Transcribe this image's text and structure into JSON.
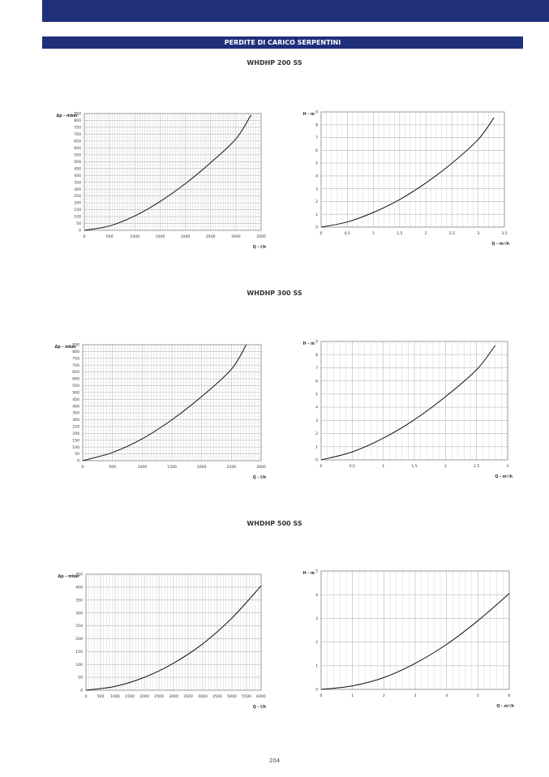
{
  "header": {
    "section_title": "PERDITE DI CARICO SERPENTINI"
  },
  "models": [
    {
      "title": "WHDHP 200 SS"
    },
    {
      "title": "WHDHP 300 SS"
    },
    {
      "title": "WHDHP 500 SS"
    }
  ],
  "page_number": "204",
  "colors": {
    "brand_bar": "#1f2f7a",
    "grid": "#b8b8b8",
    "curve": "#111111"
  },
  "chart_data": [
    {
      "type": "line",
      "title": "",
      "ylabel": "Δp - mbar",
      "xlabel": "Q - l/h",
      "xlim": [
        0,
        3500
      ],
      "ylim": [
        0,
        850
      ],
      "xticks": [
        0,
        500,
        1000,
        1500,
        2000,
        2500,
        3000,
        3500
      ],
      "xtick_labels": [
        "0",
        "500",
        "1000",
        "1500",
        "2000",
        "2500",
        "3000",
        "3500"
      ],
      "yticks": [
        0,
        50,
        100,
        150,
        200,
        250,
        300,
        350,
        400,
        450,
        500,
        550,
        600,
        650,
        700,
        750,
        800,
        850
      ],
      "ytick_labels": [
        "0",
        "50",
        "100",
        "150",
        "200",
        "250",
        "300",
        "350",
        "400",
        "450",
        "500",
        "550",
        "600",
        "650",
        "700",
        "750",
        "800",
        "850"
      ],
      "minor_x": 10,
      "grid": true,
      "series": [
        {
          "x": [
            0,
            500,
            1000,
            1500,
            2000,
            2500,
            3000,
            3300
          ],
          "y": [
            0,
            32,
            105,
            210,
            340,
            492,
            665,
            840
          ]
        }
      ]
    },
    {
      "type": "line",
      "title": "",
      "ylabel": "H - m",
      "xlabel": "Q - m³/h",
      "xlim": [
        0,
        3.5
      ],
      "ylim": [
        0,
        9
      ],
      "xticks": [
        0,
        0.5,
        1,
        1.5,
        2,
        2.5,
        3,
        3.5
      ],
      "xtick_labels": [
        "0",
        "0,5",
        "1",
        "1,5",
        "2",
        "2,5",
        "3",
        "3,5"
      ],
      "yticks": [
        0,
        1,
        2,
        3,
        4,
        5,
        6,
        7,
        8,
        9
      ],
      "ytick_labels": [
        "0",
        "1",
        "2",
        "3",
        "4",
        "5",
        "6",
        "7",
        "8",
        "9"
      ],
      "minor_x": 5,
      "grid": true,
      "series": [
        {
          "x": [
            0,
            0.5,
            1,
            1.5,
            2,
            2.5,
            3,
            3.3
          ],
          "y": [
            0,
            0.4,
            1.15,
            2.15,
            3.45,
            5.0,
            6.85,
            8.55
          ]
        }
      ]
    },
    {
      "type": "line",
      "title": "",
      "ylabel": "Δp - mbar",
      "xlabel": "Q - l/h",
      "xlim": [
        0,
        3000
      ],
      "ylim": [
        0,
        850
      ],
      "xticks": [
        0,
        500,
        1000,
        1500,
        2000,
        2500,
        3000
      ],
      "xtick_labels": [
        "0",
        "500",
        "1000",
        "1500",
        "2000",
        "2500",
        "3000"
      ],
      "yticks": [
        0,
        50,
        100,
        150,
        200,
        250,
        300,
        350,
        400,
        450,
        500,
        550,
        600,
        650,
        700,
        750,
        800,
        850
      ],
      "ytick_labels": [
        "0",
        "50",
        "100",
        "150",
        "200",
        "250",
        "300",
        "350",
        "400",
        "450",
        "500",
        "550",
        "600",
        "650",
        "700",
        "750",
        "800",
        "850"
      ],
      "minor_x": 10,
      "grid": true,
      "series": [
        {
          "x": [
            0,
            500,
            1000,
            1500,
            2000,
            2500,
            2750
          ],
          "y": [
            0,
            60,
            160,
            300,
            470,
            670,
            850
          ]
        }
      ]
    },
    {
      "type": "line",
      "title": "",
      "ylabel": "H - m",
      "xlabel": "Q - m³/h",
      "xlim": [
        0,
        3
      ],
      "ylim": [
        0,
        9
      ],
      "xticks": [
        0,
        0.5,
        1,
        1.5,
        2,
        2.5,
        3
      ],
      "xtick_labels": [
        "0",
        "0,5",
        "1",
        "1,5",
        "2",
        "2,5",
        "3"
      ],
      "yticks": [
        0,
        1,
        2,
        3,
        4,
        5,
        6,
        7,
        8,
        9
      ],
      "ytick_labels": [
        "0",
        "1",
        "2",
        "3",
        "4",
        "5",
        "6",
        "7",
        "8",
        "9"
      ],
      "minor_x": 5,
      "grid": true,
      "series": [
        {
          "x": [
            0,
            0.5,
            1,
            1.5,
            2,
            2.5,
            2.8
          ],
          "y": [
            0,
            0.6,
            1.65,
            3.05,
            4.8,
            6.85,
            8.7
          ]
        }
      ]
    },
    {
      "type": "line",
      "title": "",
      "ylabel": "Δp - mbar",
      "xlabel": "Q - l/h",
      "xlim": [
        0,
        6000
      ],
      "ylim": [
        0,
        450
      ],
      "xticks": [
        0,
        500,
        1000,
        1500,
        2000,
        2500,
        3000,
        3500,
        4000,
        4500,
        5000,
        5500,
        6000
      ],
      "xtick_labels": [
        "0",
        "500",
        "1000",
        "1500",
        "2000",
        "2500",
        "3000",
        "3500",
        "4000",
        "4500",
        "5000",
        "5500",
        "6000"
      ],
      "yticks": [
        0,
        50,
        100,
        150,
        200,
        250,
        300,
        350,
        400,
        450
      ],
      "ytick_labels": [
        "0",
        "50",
        "100",
        "150",
        "200",
        "250",
        "300",
        "350",
        "400",
        "450"
      ],
      "minor_x": 5,
      "grid": true,
      "series": [
        {
          "x": [
            0,
            1000,
            2000,
            3000,
            4000,
            5000,
            6000
          ],
          "y": [
            0,
            15,
            50,
            105,
            180,
            280,
            405
          ]
        }
      ]
    },
    {
      "type": "line",
      "title": "",
      "ylabel": "H - m",
      "xlabel": "Q - m³/h",
      "xlim": [
        0,
        6
      ],
      "ylim": [
        0,
        5
      ],
      "xticks": [
        0,
        1,
        2,
        3,
        4,
        5,
        6
      ],
      "xtick_labels": [
        "0",
        "1",
        "2",
        "3",
        "4",
        "5",
        "6"
      ],
      "yticks": [
        0,
        1,
        2,
        3,
        4,
        5
      ],
      "ytick_labels": [
        "0",
        "1",
        "2",
        "3",
        "4",
        "5"
      ],
      "minor_x": 5,
      "grid": true,
      "series": [
        {
          "x": [
            0,
            1,
            2,
            3,
            4,
            5,
            6
          ],
          "y": [
            0,
            0.15,
            0.5,
            1.1,
            1.9,
            2.9,
            4.05
          ]
        }
      ]
    }
  ]
}
